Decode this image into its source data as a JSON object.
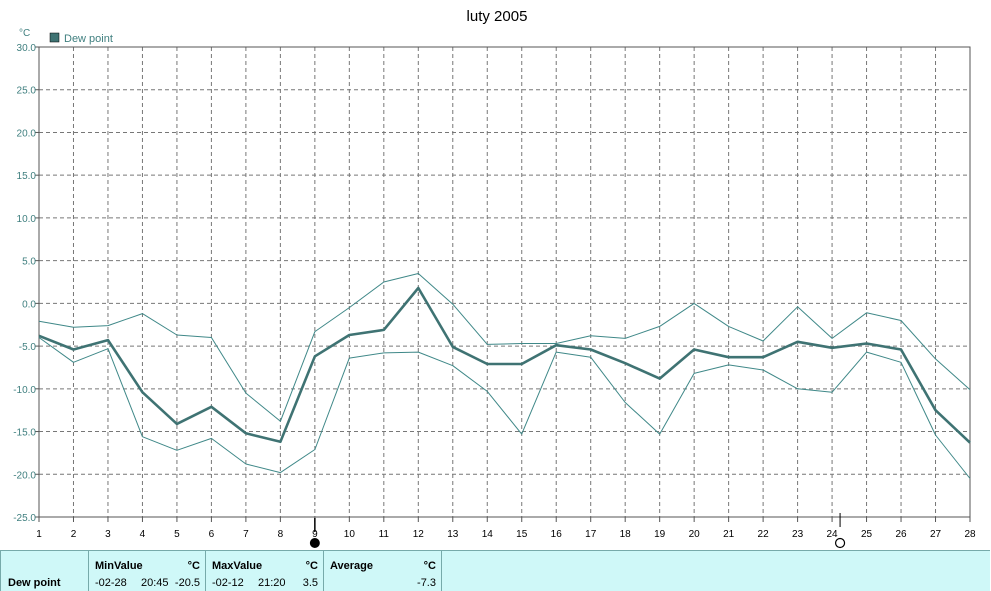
{
  "chart_data": {
    "type": "line",
    "title": "luty 2005",
    "ylabel": "°C",
    "ylim": [
      -25,
      30
    ],
    "yticks": [
      "30.0",
      "25.0",
      "20.0",
      "15.0",
      "10.0",
      "5.0",
      "0.0",
      "-5.0",
      "-10.0",
      "-15.0",
      "-20.0",
      "-25.0"
    ],
    "categories": [
      "1",
      "2",
      "3",
      "4",
      "5",
      "6",
      "7",
      "8",
      "9",
      "10",
      "11",
      "12",
      "13",
      "14",
      "15",
      "16",
      "17",
      "18",
      "19",
      "20",
      "21",
      "22",
      "23",
      "24",
      "25",
      "26",
      "27",
      "28"
    ],
    "grid": true,
    "legend": "top-left",
    "series": [
      {
        "name": "Dew point",
        "role": "average",
        "color": "#3f7373",
        "values": [
          -3.8,
          -5.4,
          -4.3,
          -10.4,
          -14.1,
          -12.1,
          -15.2,
          -16.2,
          -6.2,
          -3.7,
          -3.1,
          1.8,
          -5.1,
          -7.1,
          -7.1,
          -4.9,
          -5.4,
          -7.0,
          -8.8,
          -5.4,
          -6.3,
          -6.3,
          -4.5,
          -5.2,
          -4.7,
          -5.4,
          -12.5,
          -16.3
        ]
      },
      {
        "role": "max",
        "color": "#3f8888",
        "values": [
          -2.1,
          -2.8,
          -2.6,
          -1.2,
          -3.7,
          -4.0,
          -10.5,
          -13.8,
          -3.3,
          -0.5,
          2.5,
          3.5,
          -0.1,
          -4.8,
          -4.7,
          -4.7,
          -3.8,
          -4.1,
          -2.7,
          0.0,
          -2.7,
          -4.4,
          -0.4,
          -4.1,
          -1.1,
          -2.0,
          -6.5,
          -10.1
        ]
      },
      {
        "role": "min",
        "color": "#3f8888",
        "values": [
          -4.0,
          -6.9,
          -5.3,
          -15.6,
          -17.2,
          -15.8,
          -18.8,
          -19.8,
          -17.1,
          -6.4,
          -5.8,
          -5.7,
          -7.3,
          -10.3,
          -15.3,
          -5.7,
          -6.3,
          -11.6,
          -15.3,
          -8.2,
          -7.2,
          -7.8,
          -10.0,
          -10.4,
          -5.7,
          -6.9,
          -15.4,
          -20.5
        ]
      }
    ]
  },
  "markers": {
    "filled_day": "9",
    "hollow_day": "24"
  },
  "colors": {
    "series": "#3f7373",
    "grid": "#777777",
    "axis_text": "#3f7f7f",
    "footer_bg": "#cff8f8"
  },
  "footer": {
    "row_label": "Dew point",
    "min": {
      "header": "MinValue",
      "unit": "°C",
      "date": "-02-28",
      "time": "20:45",
      "value": "-20.5"
    },
    "max": {
      "header": "MaxValue",
      "unit": "°C",
      "date": "-02-12",
      "time": "21:20",
      "value": "3.5"
    },
    "avg": {
      "header": "Average",
      "unit": "°C",
      "value": "-7.3"
    }
  }
}
